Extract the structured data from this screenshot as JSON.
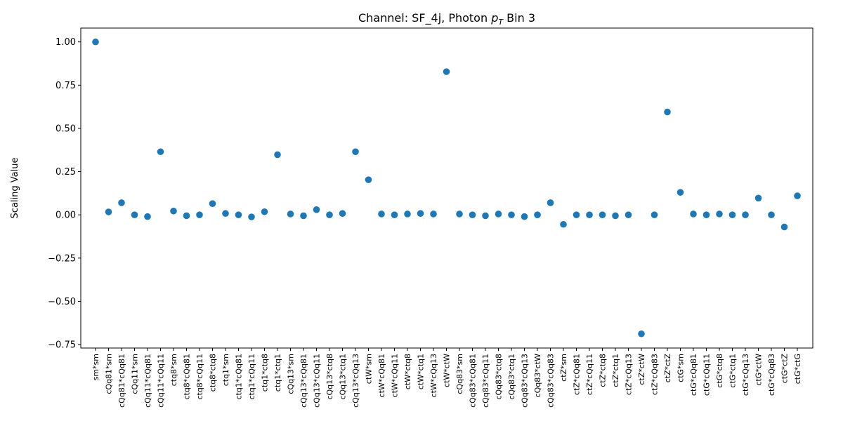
{
  "chart_data": {
    "type": "scatter",
    "title": "Channel: SF_4j, Photon ",
    "title_pt_base": "p",
    "title_pt_sub": "T",
    "title_suffix": " Bin 3",
    "xlabel": "",
    "ylabel": "Scaling Value",
    "ylim": [
      -0.77,
      1.08
    ],
    "yticks": [
      -0.75,
      -0.5,
      -0.25,
      0.0,
      0.25,
      0.5,
      0.75,
      1.0
    ],
    "ytick_labels": [
      "−0.75",
      "−0.50",
      "−0.25",
      "0.00",
      "0.25",
      "0.50",
      "0.75",
      "1.00"
    ],
    "grid": false,
    "marker_color": "#1f77b4",
    "categories": [
      "sm*sm",
      "cQq81*sm",
      "cQq81*cQq81",
      "cQq11*sm",
      "cQq11*cQq81",
      "cQq11*cQq11",
      "ctq8*sm",
      "ctq8*cQq81",
      "ctq8*cQq11",
      "ctq8*ctq8",
      "ctq1*sm",
      "ctq1*cQq81",
      "ctq1*cQq11",
      "ctq1*ctq8",
      "ctq1*ctq1",
      "cQq13*sm",
      "cQq13*cQq81",
      "cQq13*cQq11",
      "cQq13*ctq8",
      "cQq13*ctq1",
      "cQq13*cQq13",
      "ctW*sm",
      "ctW*cQq81",
      "ctW*cQq11",
      "ctW*ctq8",
      "ctW*ctq1",
      "ctW*cQq13",
      "ctW*ctW",
      "cQq83*sm",
      "cQq83*cQq81",
      "cQq83*cQq11",
      "cQq83*ctq8",
      "cQq83*ctq1",
      "cQq83*cQq13",
      "cQq83*ctW",
      "cQq83*cQq83",
      "ctZ*sm",
      "ctZ*cQq81",
      "ctZ*cQq11",
      "ctZ*ctq8",
      "ctZ*ctq1",
      "ctZ*cQq13",
      "ctZ*ctW",
      "ctZ*cQq83",
      "ctZ*ctZ",
      "ctG*sm",
      "ctG*cQq81",
      "ctG*cQq11",
      "ctG*ctq8",
      "ctG*ctq1",
      "ctG*cQq13",
      "ctG*ctW",
      "ctG*cQq83",
      "ctG*ctZ",
      "ctG*ctG"
    ],
    "values": [
      1.0,
      0.017,
      0.07,
      0.0,
      -0.01,
      0.365,
      0.022,
      -0.005,
      0.0,
      0.065,
      0.008,
      0.0,
      -0.012,
      0.018,
      0.348,
      0.005,
      -0.005,
      0.03,
      0.0,
      0.008,
      0.365,
      0.203,
      0.005,
      0.0,
      0.005,
      0.008,
      0.005,
      0.828,
      0.005,
      0.0,
      -0.005,
      0.005,
      0.0,
      -0.01,
      0.0,
      0.07,
      -0.055,
      0.0,
      0.0,
      0.0,
      -0.005,
      0.0,
      -0.688,
      0.0,
      0.595,
      0.13,
      0.005,
      0.0,
      0.005,
      0.0,
      0.0,
      0.097,
      0.0,
      -0.07,
      0.11
    ]
  }
}
